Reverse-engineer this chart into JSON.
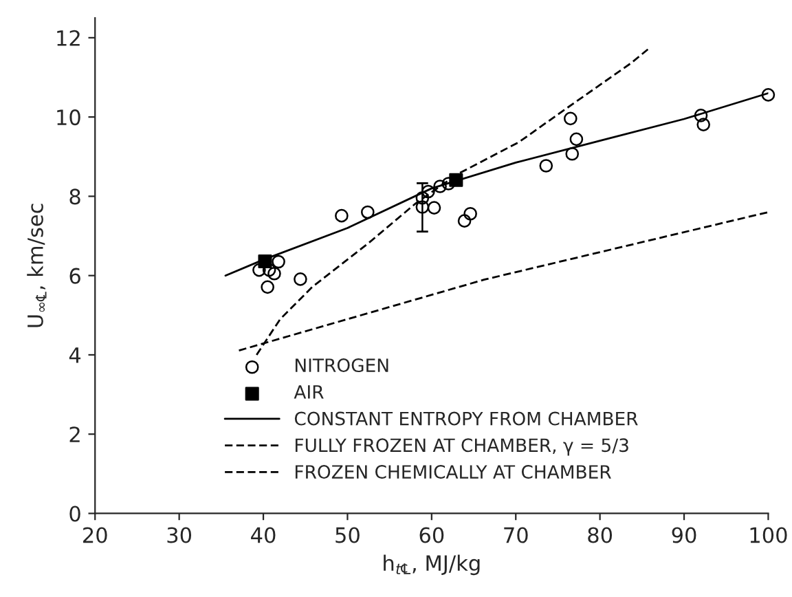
{
  "chart_data": {
    "type": "scatter",
    "xlabel": "h$_{t℄}$, MJ/kg",
    "ylabel": "U$_{∞℄}$, km/sec",
    "xlim": [
      20,
      100
    ],
    "ylim": [
      0,
      12.5
    ],
    "xticks": [
      20,
      30,
      40,
      50,
      60,
      70,
      80,
      90,
      100
    ],
    "yticks": [
      0,
      2,
      4,
      6,
      8,
      10,
      12
    ],
    "grid": false,
    "legend": "bottom",
    "series": [
      {
        "name": "NITROGEN",
        "marker": "circle",
        "color": "#000000",
        "x": [
          39.5,
          40.7,
          41.3,
          41.8,
          40.5,
          44.4,
          49.3,
          52.4,
          58.9,
          58.9,
          60.3,
          59.6,
          61.0,
          62.0,
          63.9,
          64.6,
          73.6,
          76.5,
          77.2,
          76.7,
          92.0,
          92.3,
          100
        ],
        "values": [
          6.14,
          6.14,
          6.05,
          6.35,
          5.71,
          5.91,
          7.51,
          7.6,
          7.96,
          7.73,
          7.71,
          8.12,
          8.25,
          8.32,
          7.38,
          7.56,
          8.77,
          9.96,
          9.44,
          9.07,
          10.04,
          9.81,
          10.56
        ],
        "errors": [
          null,
          null,
          null,
          null,
          null,
          null,
          null,
          null,
          [
            7.11,
            8.33
          ],
          null,
          null,
          null,
          null,
          null,
          null,
          null,
          null,
          null,
          null,
          null,
          null,
          null,
          null
        ]
      },
      {
        "name": "AIR",
        "marker": "square",
        "color": "#000000",
        "x": [
          40.2,
          62.9
        ],
        "values": [
          6.36,
          8.41
        ]
      },
      {
        "name": "CONSTANT ENTROPY FROM CHAMBER",
        "type": "line",
        "line_style": "solid",
        "color": "#000000",
        "x": [
          35.5,
          40,
          50,
          60,
          70,
          80,
          90,
          100
        ],
        "values": [
          6.0,
          6.4,
          7.2,
          8.2,
          8.85,
          9.4,
          9.95,
          10.6
        ]
      },
      {
        "name": "FULLY FROZEN AT CHAMBER, γ = 5/3",
        "type": "line",
        "line_style": "dashed",
        "color": "#000000",
        "x": [
          39.2,
          42,
          45.8,
          52.5,
          58.1,
          63,
          70.4,
          75.5,
          83.7,
          86
        ],
        "values": [
          4.0,
          4.9,
          5.71,
          6.82,
          7.82,
          8.55,
          9.37,
          10.14,
          11.36,
          11.76
        ]
      },
      {
        "name": "FROZEN CHEMICALLY AT CHAMBER",
        "type": "line",
        "line_style": "dashed",
        "color": "#000000",
        "x": [
          37.1,
          66.3,
          100
        ],
        "values": [
          4.11,
          5.9,
          7.6
        ]
      }
    ]
  }
}
